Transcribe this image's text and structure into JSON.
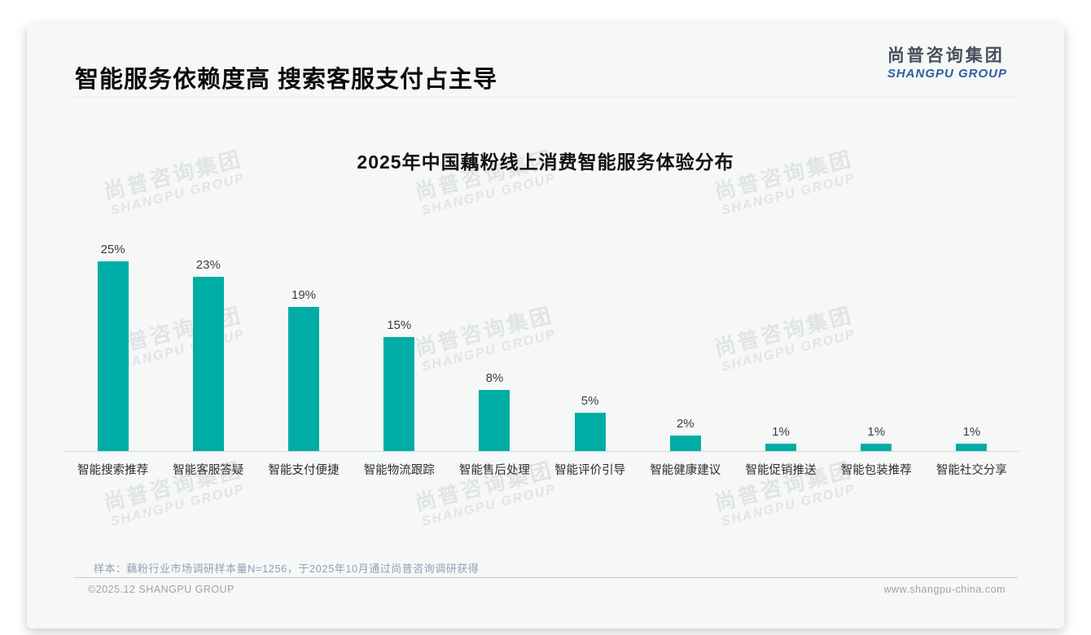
{
  "header": {
    "title": "智能服务依赖度高 搜索客服支付占主导",
    "logo_cn": "尚普咨询集团",
    "logo_en": "SHANGPU GROUP"
  },
  "watermark": {
    "line1": "尚普咨询集团",
    "line2": "SHANGPU GROUP"
  },
  "chart_data": {
    "type": "bar",
    "title": "2025年中国藕粉线上消费智能服务体验分布",
    "categories": [
      "智能搜索推荐",
      "智能客服答疑",
      "智能支付便捷",
      "智能物流跟踪",
      "智能售后处理",
      "智能评价引导",
      "智能健康建议",
      "智能促销推送",
      "智能包装推荐",
      "智能社交分享"
    ],
    "values": [
      25,
      23,
      19,
      15,
      8,
      5,
      2,
      1,
      1,
      1
    ],
    "value_labels": [
      "25%",
      "23%",
      "19%",
      "15%",
      "8%",
      "5%",
      "2%",
      "1%",
      "1%",
      "1%"
    ],
    "unit": "%",
    "bar_color": "#00ada6",
    "ylim": [
      0,
      28
    ],
    "grid": false,
    "legend": "none"
  },
  "footnote": "样本：藕粉行业市场调研样本量N=1256，于2025年10月通过尚普咨询调研获得",
  "footer": {
    "left": "©2025.12 SHANGPU GROUP",
    "right": "www.shangpu-china.com"
  }
}
